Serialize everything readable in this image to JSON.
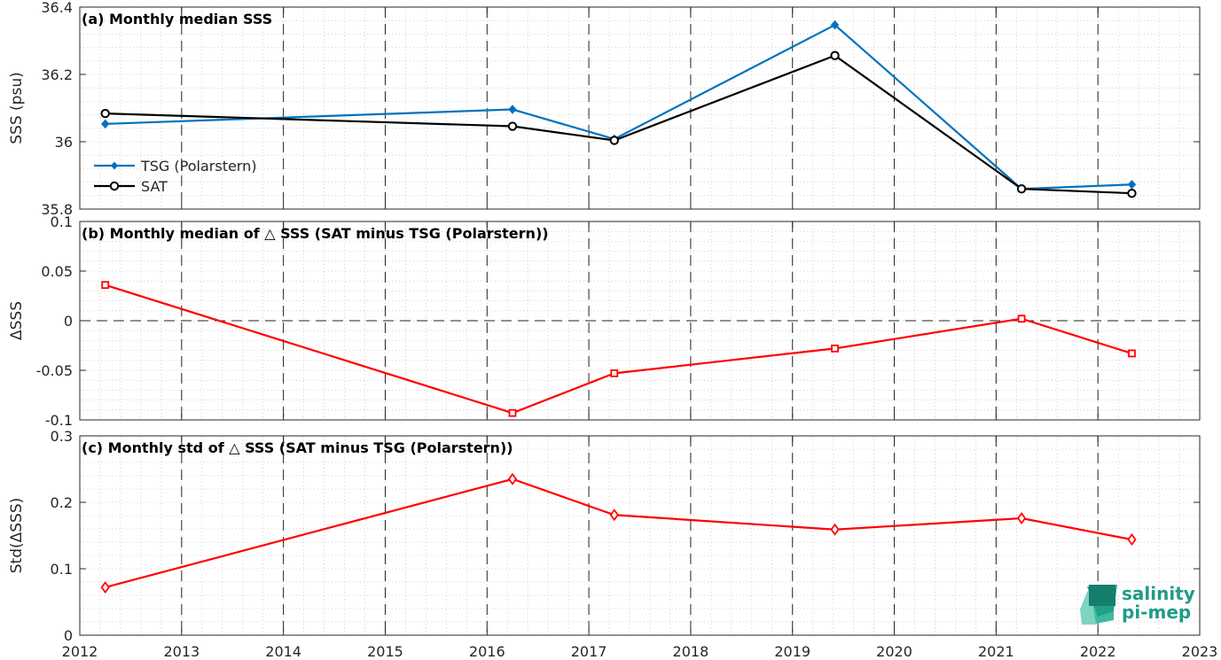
{
  "chart_data": [
    {
      "type": "line",
      "title": "(a) Monthly median SSS",
      "ylabel": "SSS (psu)",
      "ylim": [
        35.8,
        36.4
      ],
      "yticks": [
        35.8,
        36,
        36.2,
        36.4
      ],
      "yticklabels": [
        "35.8",
        "36",
        "36.2",
        "36.4"
      ],
      "series": [
        {
          "name": "TSG (Polarstern)",
          "color": "#0072bd",
          "marker": "diamond-filled",
          "x": [
            "2012-04",
            "2016-04",
            "2017-04",
            "2019-06",
            "2021-04",
            "2022-05"
          ],
          "values": [
            36.053,
            36.096,
            36.008,
            36.347,
            35.86,
            35.873
          ]
        },
        {
          "name": "SAT",
          "color": "#000000",
          "marker": "circle",
          "x": [
            "2012-04",
            "2016-04",
            "2017-04",
            "2019-06",
            "2021-04",
            "2022-05"
          ],
          "values": [
            36.084,
            36.046,
            36.004,
            36.256,
            35.86,
            35.847
          ]
        }
      ],
      "legend": "lower-left"
    },
    {
      "type": "line",
      "title": "(b) Monthly median of △ SSS (SAT minus TSG (Polarstern))",
      "ylabel": "ΔSSS",
      "ylim": [
        -0.1,
        0.1
      ],
      "yticks": [
        -0.1,
        -0.05,
        0,
        0.05,
        0.1
      ],
      "yticklabels": [
        "-0.1",
        "-0.05",
        "0",
        "0.05",
        "0.1"
      ],
      "zero_line": true,
      "series": [
        {
          "color": "#ff0000",
          "marker": "square",
          "x": [
            "2012-04",
            "2016-04",
            "2017-04",
            "2019-06",
            "2021-04",
            "2022-05"
          ],
          "values": [
            0.036,
            -0.093,
            -0.053,
            -0.028,
            0.002,
            -0.033
          ]
        }
      ]
    },
    {
      "type": "line",
      "title": "(c) Monthly std of △ SSS (SAT minus TSG (Polarstern))",
      "ylabel": "Std(ΔSSS)",
      "ylim": [
        0,
        0.3
      ],
      "yticks": [
        0,
        0.1,
        0.2,
        0.3
      ],
      "yticklabels": [
        "0",
        "0.1",
        "0.2",
        "0.3"
      ],
      "series": [
        {
          "color": "#ff0000",
          "marker": "diamond",
          "x": [
            "2012-04",
            "2016-04",
            "2017-04",
            "2019-06",
            "2021-04",
            "2022-05"
          ],
          "values": [
            0.072,
            0.235,
            0.181,
            0.159,
            0.176,
            0.144
          ]
        }
      ]
    }
  ],
  "x_axis": {
    "type": "date",
    "range": [
      "2012-01",
      "2023-01"
    ],
    "ticks": [
      "2012",
      "2013",
      "2014",
      "2015",
      "2016",
      "2017",
      "2018",
      "2019",
      "2020",
      "2021",
      "2022",
      "2023"
    ]
  },
  "grid": "dotted-minor-with-dashed-year-lines",
  "logo": {
    "line1": "salinity",
    "line2": "pi-mep"
  }
}
